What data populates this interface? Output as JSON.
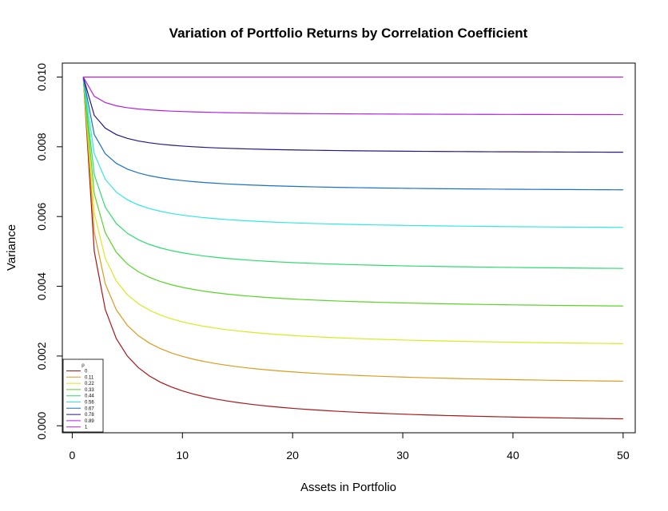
{
  "chart_data": {
    "type": "line",
    "title": "Variation of Portfolio Returns by Correlation Coefficient",
    "xlabel": "Assets in Portfolio",
    "ylabel": "Variance",
    "xlim": [
      -0.9,
      51.1
    ],
    "ylim": [
      -0.0002,
      0.0104
    ],
    "x_ticks": [
      0,
      10,
      20,
      30,
      40,
      50
    ],
    "y_ticks": [
      0.0,
      0.002,
      0.004,
      0.006,
      0.008,
      0.01
    ],
    "y_tick_labels": [
      "0.000",
      "0.002",
      "0.004",
      "0.006",
      "0.008",
      "0.010"
    ],
    "grid": false,
    "legend": {
      "title": "ρ",
      "placement": "bottom-left"
    },
    "x": [
      1,
      2,
      3,
      4,
      5,
      6,
      7,
      8,
      9,
      10,
      11,
      12,
      13,
      14,
      15,
      16,
      17,
      18,
      19,
      20,
      21,
      22,
      23,
      24,
      25,
      26,
      27,
      28,
      29,
      30,
      31,
      32,
      33,
      34,
      35,
      36,
      37,
      38,
      39,
      40,
      41,
      42,
      43,
      44,
      45,
      46,
      47,
      48,
      49,
      50
    ],
    "series": [
      {
        "name": "0",
        "rho": 0,
        "color": "#a8171a",
        "sigma2": 0.01
      },
      {
        "name": "0.11",
        "rho": 0.11,
        "color": "#dd9a1f",
        "sigma2": 0.01
      },
      {
        "name": "0.22",
        "rho": 0.22,
        "color": "#d7ea1f",
        "sigma2": 0.01
      },
      {
        "name": "0.33",
        "rho": 0.33,
        "color": "#59d428",
        "sigma2": 0.01
      },
      {
        "name": "0.44",
        "rho": 0.44,
        "color": "#2bdc6e",
        "sigma2": 0.01
      },
      {
        "name": "0.56",
        "rho": 0.56,
        "color": "#32e6e3",
        "sigma2": 0.01
      },
      {
        "name": "0.67",
        "rho": 0.67,
        "color": "#1c72c2",
        "sigma2": 0.01
      },
      {
        "name": "0.78",
        "rho": 0.78,
        "color": "#2b1580",
        "sigma2": 0.01
      },
      {
        "name": "0.89",
        "rho": 0.89,
        "color": "#b320e0",
        "sigma2": 0.01
      },
      {
        "name": "1",
        "rho": 1,
        "color": "#b020c8",
        "sigma2": 0.01
      }
    ]
  }
}
